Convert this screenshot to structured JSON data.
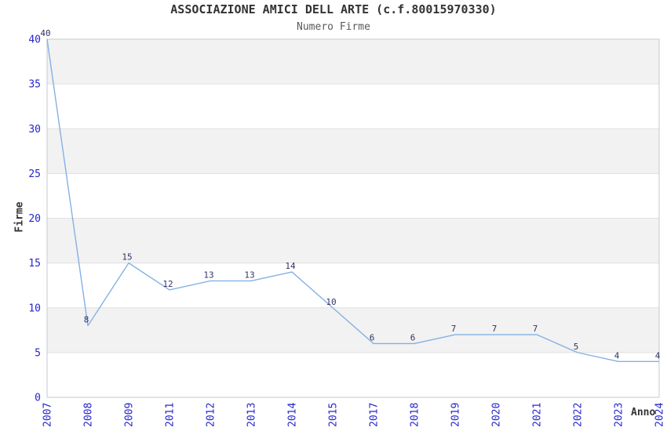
{
  "chart_data": {
    "type": "line",
    "title": "ASSOCIAZIONE AMICI DELL ARTE (c.f.80015970330)",
    "subtitle": "Numero Firme",
    "xlabel": "Anno",
    "ylabel": "Firme",
    "categories": [
      "2007",
      "2008",
      "2009",
      "2011",
      "2012",
      "2013",
      "2014",
      "2015",
      "2017",
      "2018",
      "2019",
      "2020",
      "2021",
      "2022",
      "2023",
      "2024"
    ],
    "values": [
      40,
      8,
      15,
      12,
      13,
      13,
      14,
      10,
      6,
      6,
      7,
      7,
      7,
      5,
      4,
      4
    ],
    "ylim": [
      0,
      40
    ],
    "ytick_step": 5,
    "grid": true,
    "legend": "none",
    "data_labels_shown": true,
    "colors": {
      "line": "#84b1e3",
      "tick_label": "#2626cc",
      "data_label": "#333366",
      "band": "#f2f2f2",
      "gridline": "#e0e0e0",
      "frame": "#c4c9d2",
      "title": "#333333",
      "subtitle": "#5a5a5a",
      "axis_title": "#333333",
      "background": "#ffffff"
    }
  }
}
